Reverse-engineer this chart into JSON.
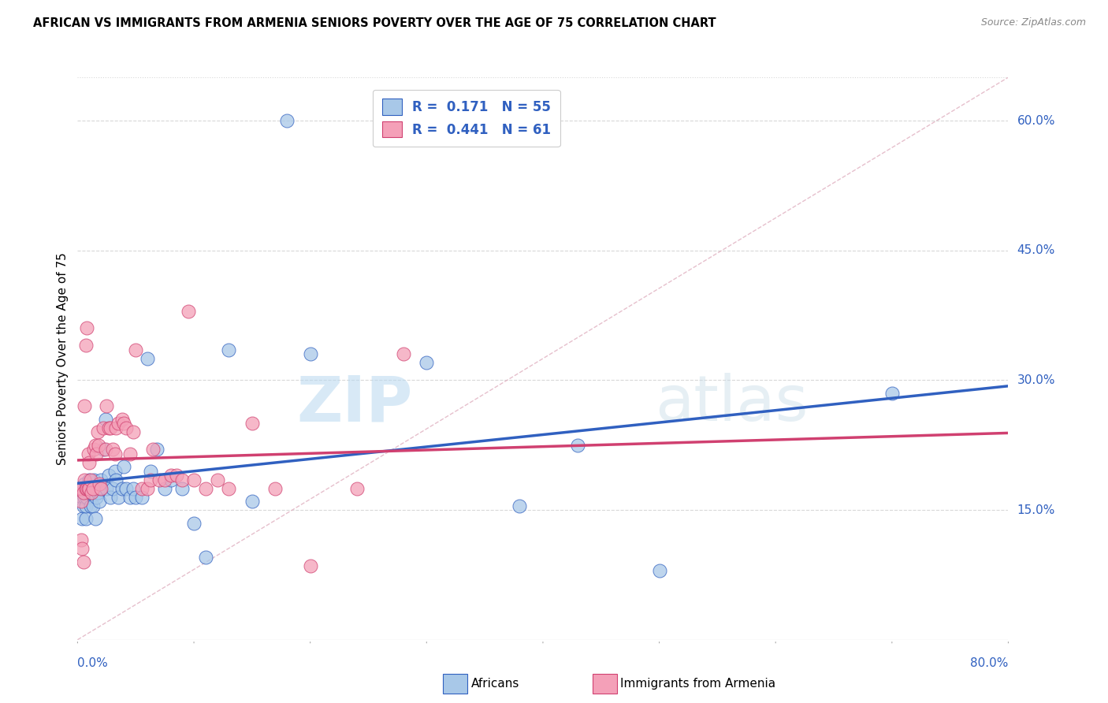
{
  "title": "AFRICAN VS IMMIGRANTS FROM ARMENIA SENIORS POVERTY OVER THE AGE OF 75 CORRELATION CHART",
  "source": "Source: ZipAtlas.com",
  "ylabel": "Seniors Poverty Over the Age of 75",
  "x_min": 0.0,
  "x_max": 0.8,
  "y_min": 0.0,
  "y_max": 0.65,
  "y_ticks": [
    0.15,
    0.3,
    0.45,
    0.6
  ],
  "y_tick_labels": [
    "15.0%",
    "30.0%",
    "45.0%",
    "60.0%"
  ],
  "legend_r1": "R =  0.171",
  "legend_n1": "N = 55",
  "legend_r2": "R =  0.441",
  "legend_n2": "N = 61",
  "color_african": "#a8c8e8",
  "color_armenia": "#f4a0b8",
  "color_trend_african": "#3060c0",
  "color_trend_armenia": "#d04070",
  "color_diagonal": "#c8c8c8",
  "africans_x": [
    0.002,
    0.003,
    0.004,
    0.004,
    0.005,
    0.006,
    0.006,
    0.007,
    0.007,
    0.008,
    0.009,
    0.01,
    0.011,
    0.012,
    0.013,
    0.014,
    0.015,
    0.016,
    0.017,
    0.018,
    0.019,
    0.02,
    0.022,
    0.024,
    0.025,
    0.027,
    0.028,
    0.03,
    0.032,
    0.033,
    0.035,
    0.038,
    0.04,
    0.042,
    0.045,
    0.048,
    0.05,
    0.055,
    0.06,
    0.063,
    0.068,
    0.075,
    0.08,
    0.09,
    0.1,
    0.11,
    0.13,
    0.15,
    0.18,
    0.2,
    0.3,
    0.38,
    0.43,
    0.5,
    0.7
  ],
  "africans_y": [
    0.175,
    0.17,
    0.165,
    0.14,
    0.155,
    0.165,
    0.18,
    0.14,
    0.155,
    0.165,
    0.17,
    0.185,
    0.155,
    0.17,
    0.155,
    0.185,
    0.14,
    0.165,
    0.17,
    0.175,
    0.16,
    0.185,
    0.22,
    0.255,
    0.175,
    0.19,
    0.165,
    0.175,
    0.195,
    0.185,
    0.165,
    0.175,
    0.2,
    0.175,
    0.165,
    0.175,
    0.165,
    0.165,
    0.325,
    0.195,
    0.22,
    0.175,
    0.185,
    0.175,
    0.135,
    0.095,
    0.335,
    0.16,
    0.6,
    0.33,
    0.32,
    0.155,
    0.225,
    0.08,
    0.285
  ],
  "armenia_x": [
    0.002,
    0.003,
    0.003,
    0.004,
    0.004,
    0.005,
    0.005,
    0.006,
    0.006,
    0.007,
    0.007,
    0.008,
    0.008,
    0.009,
    0.009,
    0.01,
    0.01,
    0.011,
    0.012,
    0.013,
    0.014,
    0.015,
    0.016,
    0.017,
    0.018,
    0.019,
    0.02,
    0.022,
    0.024,
    0.025,
    0.027,
    0.028,
    0.03,
    0.032,
    0.033,
    0.035,
    0.038,
    0.04,
    0.042,
    0.045,
    0.048,
    0.05,
    0.055,
    0.06,
    0.063,
    0.065,
    0.07,
    0.075,
    0.08,
    0.085,
    0.09,
    0.095,
    0.1,
    0.11,
    0.12,
    0.13,
    0.15,
    0.17,
    0.2,
    0.24,
    0.28
  ],
  "armenia_y": [
    0.175,
    0.16,
    0.115,
    0.175,
    0.105,
    0.17,
    0.09,
    0.185,
    0.27,
    0.175,
    0.34,
    0.175,
    0.36,
    0.175,
    0.215,
    0.175,
    0.205,
    0.185,
    0.17,
    0.175,
    0.22,
    0.225,
    0.215,
    0.24,
    0.225,
    0.18,
    0.175,
    0.245,
    0.22,
    0.27,
    0.245,
    0.245,
    0.22,
    0.215,
    0.245,
    0.25,
    0.255,
    0.25,
    0.245,
    0.215,
    0.24,
    0.335,
    0.175,
    0.175,
    0.185,
    0.22,
    0.185,
    0.185,
    0.19,
    0.19,
    0.185,
    0.38,
    0.185,
    0.175,
    0.185,
    0.175,
    0.25,
    0.175,
    0.085,
    0.175,
    0.33
  ],
  "watermark_zip": "ZIP",
  "watermark_atlas": "atlas",
  "background_color": "#ffffff",
  "grid_color": "#d8d8d8"
}
